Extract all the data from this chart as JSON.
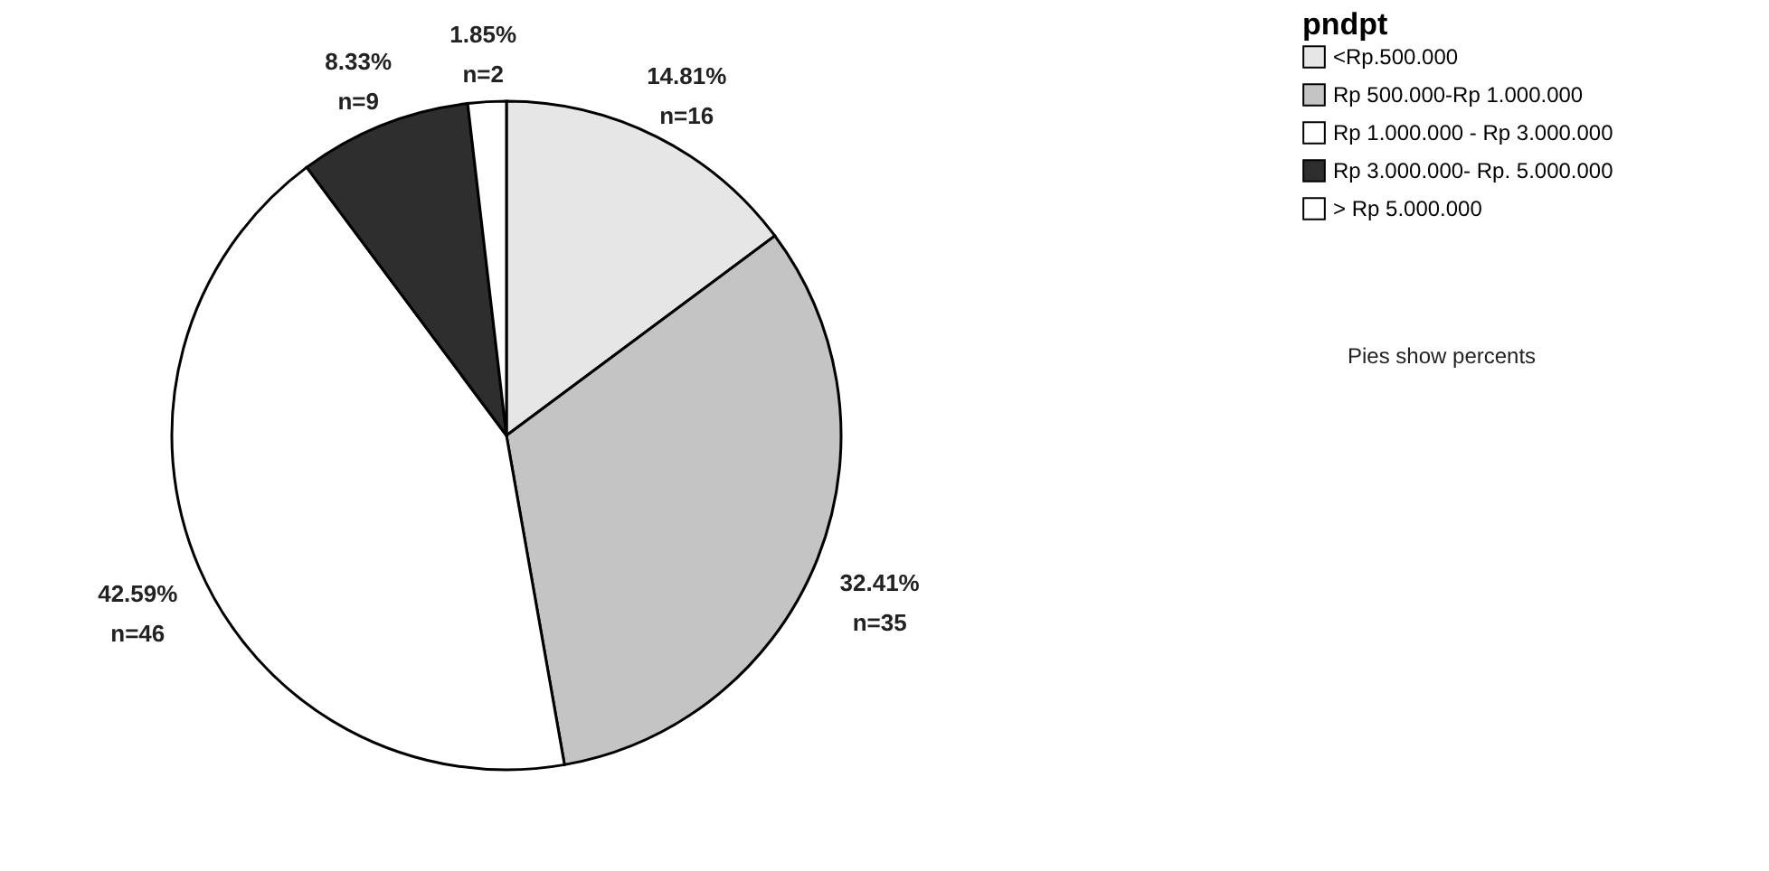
{
  "chart_data": {
    "type": "pie",
    "legend_title": "pndpt",
    "categories": [
      "<Rp.500.000",
      "Rp 500.000-Rp 1.000.000",
      "Rp 1.000.000 - Rp 3.000.000",
      "Rp 3.000.000- Rp. 5.000.000",
      "> Rp 5.000.000"
    ],
    "values": [
      14.81,
      32.41,
      42.59,
      8.33,
      1.85
    ],
    "value_labels": [
      "14.81%\nn=16",
      "32.41%\nn=35",
      "42.59%\nn=46",
      "8.33%\nn=9",
      "1.85%\nn=2"
    ],
    "colors": [
      "#e6e6e6",
      "#c4c4c4",
      "#ffffff",
      "#2e2e2e",
      "#ffffff"
    ],
    "legend": "top right",
    "annotations": [
      "Pies show percents"
    ]
  }
}
